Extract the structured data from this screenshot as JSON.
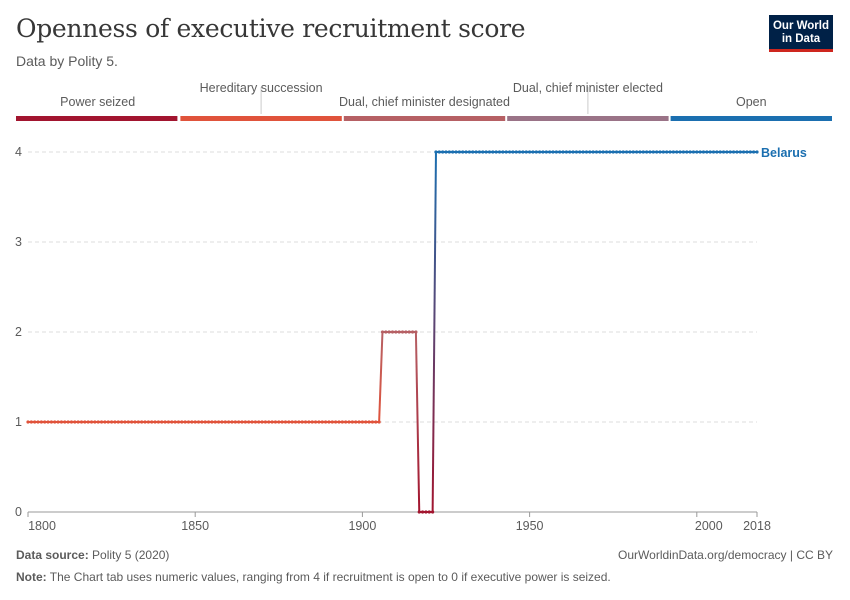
{
  "header": {
    "title": "Openness of executive recruitment score",
    "subtitle": "Data by Polity 5."
  },
  "logo": {
    "line1": "Our World",
    "line2": "in Data"
  },
  "footer": {
    "source_label": "Data source:",
    "source_text": " Polity 5 (2020)",
    "url_text": "OurWorldinData.org/democracy | CC BY",
    "note_label": "Note:",
    "note_text": " The Chart tab uses numeric values, ranging from 4 if recruitment is open to 0 if executive power is seized."
  },
  "colors": {
    "power_seized": "#a2152f",
    "hereditary": "#e0533b",
    "designated": "#b66064",
    "elected": "#9a7387",
    "open": "#1b6fb0",
    "grid": "#dddddd"
  },
  "chart_data": {
    "type": "line",
    "xlim": [
      1800,
      2018
    ],
    "ylim": [
      0,
      4
    ],
    "x_ticks": [
      1800,
      1850,
      1900,
      1950,
      2000,
      2018
    ],
    "y_ticks": [
      0,
      1,
      2,
      3,
      4
    ],
    "legend_position": "top",
    "legend": [
      {
        "label": "Power seized",
        "color": "#a2152f"
      },
      {
        "label": "Hereditary succession",
        "color": "#e0533b"
      },
      {
        "label": "Dual, chief minister designated",
        "color": "#b66064"
      },
      {
        "label": "Dual, chief minister elected",
        "color": "#9a7387"
      },
      {
        "label": "Open",
        "color": "#1b6fb0"
      }
    ],
    "series": [
      {
        "name": "Belarus",
        "color": "#1b6fb0",
        "segments": [
          {
            "x_start": 1800,
            "x_end": 1905,
            "value": 1
          },
          {
            "x_start": 1906,
            "x_end": 1916,
            "value": 2
          },
          {
            "x_start": 1917,
            "x_end": 1921,
            "value": 0
          },
          {
            "x_start": 1922,
            "x_end": 2018,
            "value": 4
          }
        ]
      }
    ]
  }
}
